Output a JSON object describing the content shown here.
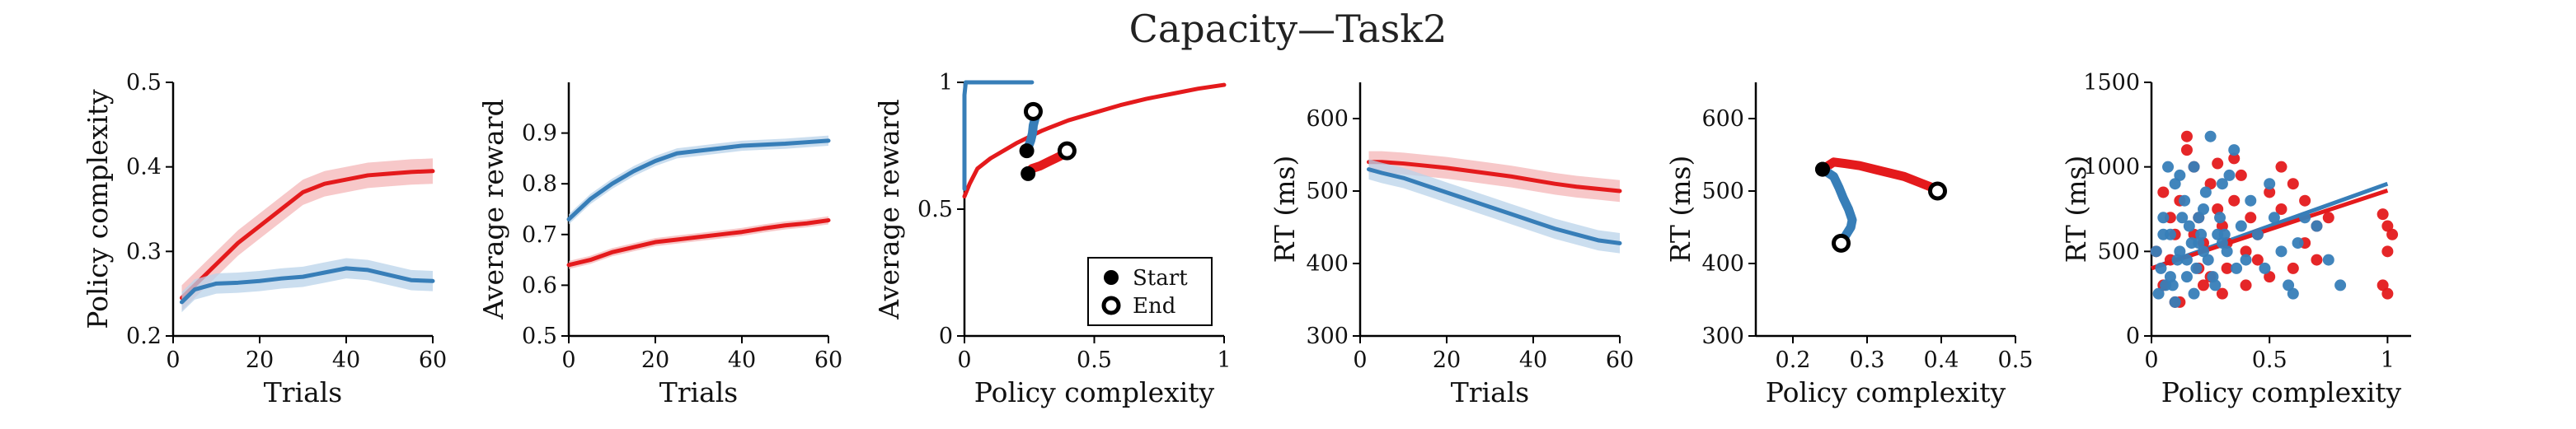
{
  "figure": {
    "title": "Capacity—Task2"
  },
  "colors": {
    "red": "#e41a1c",
    "blue": "#377eb8",
    "red_band": "#f4b6b7",
    "blue_band": "#b9d3ea",
    "axis": "#000000"
  },
  "chart_data": [
    {
      "type": "line",
      "xlabel": "Trials",
      "ylabel": "Policy complexity",
      "xlim": [
        0,
        60
      ],
      "ylim": [
        0.2,
        0.5
      ],
      "xticks": [
        "0",
        "20",
        "40",
        "60"
      ],
      "yticks": [
        "0.2",
        "0.3",
        "0.4",
        "0.5"
      ],
      "xtick_values": [
        0,
        20,
        40,
        60
      ],
      "ytick_values": [
        0.2,
        0.3,
        0.4,
        0.5
      ],
      "series": [
        {
          "color": "red",
          "band": 0.015,
          "x": [
            2,
            5,
            10,
            15,
            20,
            25,
            30,
            35,
            40,
            45,
            50,
            55,
            60
          ],
          "values": [
            0.245,
            0.26,
            0.285,
            0.31,
            0.33,
            0.35,
            0.37,
            0.38,
            0.385,
            0.39,
            0.392,
            0.394,
            0.395
          ]
        },
        {
          "color": "blue",
          "band": 0.012,
          "x": [
            2,
            5,
            10,
            15,
            20,
            25,
            30,
            35,
            40,
            45,
            50,
            55,
            60
          ],
          "values": [
            0.24,
            0.255,
            0.262,
            0.263,
            0.265,
            0.268,
            0.27,
            0.275,
            0.28,
            0.278,
            0.272,
            0.266,
            0.265
          ]
        }
      ]
    },
    {
      "type": "line",
      "xlabel": "Trials",
      "ylabel": "Average reward",
      "xlim": [
        0,
        60
      ],
      "ylim": [
        0.5,
        1.0
      ],
      "xticks": [
        "0",
        "20",
        "40",
        "60"
      ],
      "yticks": [
        "0.5",
        "0.6",
        "0.7",
        "0.8",
        "0.9"
      ],
      "xtick_values": [
        0,
        20,
        40,
        60
      ],
      "ytick_values": [
        0.5,
        0.6,
        0.7,
        0.8,
        0.9
      ],
      "series": [
        {
          "color": "blue",
          "band": 0.01,
          "x": [
            0,
            5,
            10,
            15,
            20,
            25,
            30,
            35,
            40,
            45,
            50,
            55,
            60
          ],
          "values": [
            0.73,
            0.77,
            0.8,
            0.825,
            0.845,
            0.86,
            0.865,
            0.87,
            0.875,
            0.877,
            0.879,
            0.882,
            0.885
          ]
        },
        {
          "color": "red",
          "band": 0.008,
          "x": [
            0,
            5,
            10,
            15,
            20,
            25,
            30,
            35,
            40,
            45,
            50,
            55,
            60
          ],
          "values": [
            0.64,
            0.65,
            0.665,
            0.675,
            0.685,
            0.69,
            0.695,
            0.7,
            0.705,
            0.712,
            0.718,
            0.722,
            0.728
          ]
        }
      ]
    },
    {
      "type": "line",
      "xlabel": "Policy complexity",
      "ylabel": "Average reward",
      "xlim": [
        0,
        1
      ],
      "ylim": [
        0,
        1
      ],
      "xticks": [
        "0",
        "0.5",
        "1"
      ],
      "yticks": [
        "0",
        "0.5",
        "1"
      ],
      "xtick_values": [
        0,
        0.5,
        1
      ],
      "ytick_values": [
        0,
        0.5,
        1
      ],
      "legend": {
        "position": "bottom-right",
        "entries": [
          "Start",
          "End"
        ]
      },
      "series": [
        {
          "color": "red",
          "kind": "curve",
          "x": [
            0,
            0.02,
            0.05,
            0.1,
            0.2,
            0.3,
            0.4,
            0.5,
            0.6,
            0.7,
            0.8,
            0.9,
            1.0
          ],
          "values": [
            0.55,
            0.6,
            0.66,
            0.7,
            0.76,
            0.81,
            0.85,
            0.88,
            0.91,
            0.935,
            0.955,
            0.975,
            0.99
          ]
        },
        {
          "color": "blue",
          "kind": "curve",
          "x": [
            0.0,
            0.0,
            0.005,
            0.01,
            0.26
          ],
          "values": [
            0.58,
            0.95,
            1.0,
            1.0,
            1.0
          ]
        },
        {
          "color": "red",
          "kind": "trajectory",
          "x": [
            0.245,
            0.26,
            0.29,
            0.31,
            0.33,
            0.35,
            0.37,
            0.385,
            0.395
          ],
          "values": [
            0.64,
            0.66,
            0.67,
            0.68,
            0.69,
            0.7,
            0.71,
            0.72,
            0.73
          ],
          "start": [
            0.245,
            0.64
          ],
          "end": [
            0.395,
            0.73
          ]
        },
        {
          "color": "blue",
          "kind": "trajectory",
          "x": [
            0.24,
            0.255,
            0.262,
            0.265,
            0.27,
            0.275,
            0.265
          ],
          "values": [
            0.73,
            0.77,
            0.8,
            0.83,
            0.85,
            0.87,
            0.885
          ],
          "start": [
            0.24,
            0.73
          ],
          "end": [
            0.265,
            0.885
          ]
        }
      ]
    },
    {
      "type": "line",
      "xlabel": "Trials",
      "ylabel": "RT (ms)",
      "xlim": [
        0,
        60
      ],
      "ylim": [
        300,
        650
      ],
      "xticks": [
        "0",
        "20",
        "40",
        "60"
      ],
      "yticks": [
        "300",
        "400",
        "500",
        "600"
      ],
      "xtick_values": [
        0,
        20,
        40,
        60
      ],
      "ytick_values": [
        300,
        400,
        500,
        600
      ],
      "series": [
        {
          "color": "red",
          "band": 15,
          "x": [
            2,
            5,
            10,
            15,
            20,
            25,
            30,
            35,
            40,
            45,
            50,
            55,
            60
          ],
          "values": [
            540,
            540,
            538,
            535,
            532,
            528,
            524,
            520,
            515,
            510,
            506,
            503,
            500
          ]
        },
        {
          "color": "blue",
          "band": 14,
          "x": [
            2,
            5,
            10,
            15,
            20,
            25,
            30,
            35,
            40,
            45,
            50,
            55,
            60
          ],
          "values": [
            530,
            525,
            518,
            508,
            498,
            488,
            478,
            468,
            458,
            448,
            440,
            432,
            428
          ]
        }
      ]
    },
    {
      "type": "line",
      "xlabel": "Policy complexity",
      "ylabel": "RT (ms)",
      "xlim": [
        0.15,
        0.5
      ],
      "ylim": [
        300,
        650
      ],
      "xticks": [
        "0.2",
        "0.3",
        "0.4",
        "0.5"
      ],
      "yticks": [
        "300",
        "400",
        "500",
        "600"
      ],
      "xtick_values": [
        0.2,
        0.3,
        0.4,
        0.5
      ],
      "ytick_values": [
        300,
        400,
        500,
        600
      ],
      "series": [
        {
          "color": "red",
          "kind": "trajectory",
          "x": [
            0.24,
            0.255,
            0.27,
            0.29,
            0.31,
            0.33,
            0.35,
            0.37,
            0.385,
            0.395
          ],
          "values": [
            530,
            540,
            538,
            535,
            530,
            525,
            520,
            512,
            506,
            500
          ],
          "start": [
            0.24,
            530
          ],
          "end": [
            0.395,
            500
          ]
        },
        {
          "color": "blue",
          "kind": "trajectory",
          "x": [
            0.24,
            0.255,
            0.262,
            0.268,
            0.275,
            0.28,
            0.278,
            0.272,
            0.265
          ],
          "values": [
            530,
            520,
            505,
            490,
            475,
            460,
            450,
            440,
            428
          ],
          "start": [
            0.24,
            530
          ],
          "end": [
            0.265,
            428
          ]
        }
      ]
    },
    {
      "type": "scatter",
      "xlabel": "Policy complexity",
      "ylabel": "RT (ms)",
      "xlim": [
        0,
        1.1
      ],
      "ylim": [
        0,
        1500
      ],
      "xticks": [
        "0",
        "0.5",
        "1"
      ],
      "yticks": [
        "0",
        "500",
        "1000",
        "1500"
      ],
      "xtick_values": [
        0,
        0.5,
        1
      ],
      "ytick_values": [
        0,
        500,
        1000,
        1500
      ],
      "fit_lines": [
        {
          "color": "blue",
          "x": [
            0,
            1.0
          ],
          "values": [
            400,
            900
          ]
        },
        {
          "color": "red",
          "x": [
            0,
            1.0
          ],
          "values": [
            400,
            860
          ]
        }
      ],
      "series": [
        {
          "color": "red",
          "x": [
            0.05,
            0.08,
            0.1,
            0.12,
            0.15,
            0.18,
            0.2,
            0.22,
            0.25,
            0.28,
            0.3,
            0.32,
            0.35,
            0.38,
            0.4,
            0.42,
            0.45,
            0.5,
            0.55,
            0.6,
            0.65,
            0.7,
            0.75,
            0.98,
            1.0,
            1.0,
            1.02,
            0.98,
            1.0,
            0.2,
            0.25,
            0.3,
            0.12,
            0.15,
            0.35,
            0.4,
            0.45,
            0.55,
            0.6,
            0.08,
            0.1,
            0.05,
            0.02,
            0.18,
            0.22,
            0.28,
            0.32,
            0.5,
            0.65,
            0.7
          ],
          "values": [
            300,
            450,
            600,
            800,
            1180,
            1000,
            700,
            550,
            900,
            1020,
            650,
            400,
            800,
            950,
            500,
            700,
            600,
            850,
            750,
            900,
            550,
            650,
            700,
            720,
            650,
            500,
            600,
            300,
            250,
            400,
            350,
            250,
            200,
            1100,
            1050,
            300,
            450,
            1000,
            400,
            700,
            200,
            850,
            500,
            600,
            300,
            750,
            550,
            350,
            800,
            450
          ]
        },
        {
          "color": "blue",
          "x": [
            0.02,
            0.04,
            0.05,
            0.06,
            0.08,
            0.1,
            0.12,
            0.14,
            0.15,
            0.16,
            0.18,
            0.2,
            0.22,
            0.24,
            0.25,
            0.28,
            0.3,
            0.32,
            0.35,
            0.38,
            0.4,
            0.42,
            0.45,
            0.5,
            0.55,
            0.6,
            0.65,
            0.7,
            0.75,
            0.8,
            0.03,
            0.07,
            0.09,
            0.11,
            0.13,
            0.17,
            0.19,
            0.21,
            0.23,
            0.26,
            0.29,
            0.33,
            0.36,
            0.05,
            0.1,
            0.15,
            0.2,
            0.3,
            0.12,
            0.08,
            0.18,
            0.22,
            0.27,
            0.31,
            0.48,
            0.52,
            0.58,
            0.62
          ],
          "values": [
            500,
            400,
            700,
            300,
            600,
            900,
            500,
            800,
            350,
            650,
            1000,
            550,
            750,
            450,
            1180,
            600,
            900,
            500,
            1100,
            650,
            450,
            800,
            600,
            900,
            500,
            250,
            700,
            650,
            450,
            300,
            250,
            1000,
            300,
            450,
            700,
            550,
            400,
            600,
            850,
            350,
            700,
            950,
            400,
            600,
            200,
            450,
            700,
            550,
            950,
            350,
            250,
            500,
            300,
            600,
            400,
            700,
            300,
            550
          ]
        }
      ]
    }
  ]
}
